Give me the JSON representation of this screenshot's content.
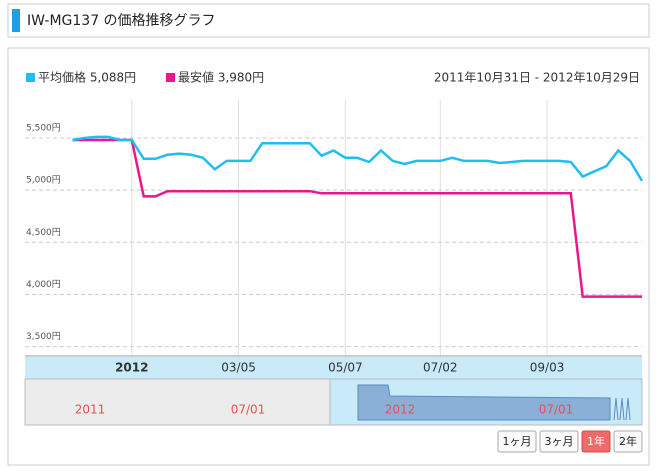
{
  "chart_data": {
    "type": "line",
    "title": "IW-MG137 の価格推移グラフ",
    "subtitle": "2011年10月31日 - 2012年10月29日",
    "categories": [
      null,
      null,
      null,
      null,
      null,
      null,
      null,
      null,
      null,
      "2012",
      null,
      null,
      null,
      null,
      null,
      null,
      null,
      null,
      "03/05",
      null,
      null,
      null,
      null,
      null,
      null,
      null,
      null,
      "05/07",
      null,
      null,
      null,
      null,
      null,
      null,
      null,
      "07/02",
      null,
      null,
      null,
      null,
      null,
      null,
      null,
      null,
      "09/03",
      null,
      null,
      null,
      null,
      null,
      null,
      null,
      null
    ],
    "series": [
      {
        "name": "平均価格 5,088円",
        "color": "#1ebef0",
        "values": [
          null,
          null,
          null,
          null,
          5480,
          5500,
          5510,
          5510,
          5480,
          5480,
          5300,
          5300,
          5340,
          5350,
          5340,
          5310,
          5200,
          5280,
          5280,
          5280,
          5450,
          5450,
          5450,
          5450,
          5450,
          5330,
          5380,
          5310,
          5310,
          5270,
          5380,
          5280,
          5250,
          5280,
          5280,
          5280,
          5310,
          5280,
          5280,
          5280,
          5260,
          5270,
          5280,
          5280,
          5280,
          5280,
          5270,
          5130,
          5180,
          5230,
          5380,
          5280,
          5088
        ]
      },
      {
        "name": "最安値 3,980円",
        "color": "#e8188c",
        "values": [
          null,
          null,
          null,
          null,
          5480,
          5480,
          5480,
          5480,
          5480,
          5480,
          4940,
          4940,
          4990,
          4990,
          4990,
          4990,
          4990,
          4990,
          4990,
          4990,
          4990,
          4990,
          4990,
          4990,
          4990,
          4970,
          4970,
          4970,
          4970,
          4970,
          4970,
          4970,
          4970,
          4970,
          4970,
          4970,
          4970,
          4970,
          4970,
          4970,
          4970,
          4970,
          4970,
          4970,
          4970,
          4970,
          4970,
          3980,
          3980,
          3980,
          3980,
          3980,
          3980
        ]
      }
    ],
    "ylim": [
      3420,
      5720
    ],
    "yticks": [
      {
        "value": 3500,
        "label": "3,500円"
      },
      {
        "value": 4000,
        "label": "4,000円"
      },
      {
        "value": 4500,
        "label": "4,500円"
      },
      {
        "value": 5000,
        "label": "5,000円"
      },
      {
        "value": 5500,
        "label": "5,500円"
      }
    ],
    "grid": true
  },
  "navigator": {
    "labels": [
      "2011",
      "07/01",
      "2012",
      "07/01"
    ]
  },
  "buttons": [
    "1ヶ月",
    "3ヶ月",
    "1年",
    "2年"
  ],
  "active_button": 2
}
